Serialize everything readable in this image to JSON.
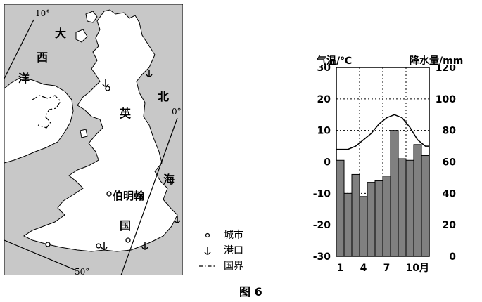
{
  "map": {
    "longitude_labels": [
      "10°",
      "0°",
      "50°"
    ],
    "sea_chars": [
      "大",
      "西",
      "洋",
      "北",
      "海"
    ],
    "country_chars": [
      "英",
      "国"
    ],
    "city": "伯明翰"
  },
  "legend": {
    "items": [
      {
        "symbol": "city-dot",
        "label": "城市"
      },
      {
        "symbol": "anchor",
        "label": "港口"
      },
      {
        "symbol": "border-line",
        "label": "国界"
      }
    ]
  },
  "caption": "图 6",
  "chart_data": {
    "type": "bar",
    "title_left": "气温/℃",
    "title_right": "降水量/mm",
    "x_ticks": [
      "1",
      "4",
      "7",
      "10月"
    ],
    "months": [
      1,
      2,
      3,
      4,
      5,
      6,
      7,
      8,
      9,
      10,
      11,
      12
    ],
    "temperature": [
      4,
      4,
      5,
      7,
      9,
      12,
      14,
      15,
      14,
      11,
      7,
      5
    ],
    "precipitation": [
      61,
      40,
      52,
      38,
      47,
      48,
      51,
      80,
      62,
      61,
      71,
      64
    ],
    "temp_axis": {
      "min": -30,
      "max": 30,
      "ticks": [
        -30,
        -20,
        -10,
        0,
        10,
        20,
        30
      ]
    },
    "precip_axis": {
      "min": 0,
      "max": 120,
      "ticks": [
        0,
        20,
        40,
        60,
        80,
        100,
        120
      ]
    }
  }
}
